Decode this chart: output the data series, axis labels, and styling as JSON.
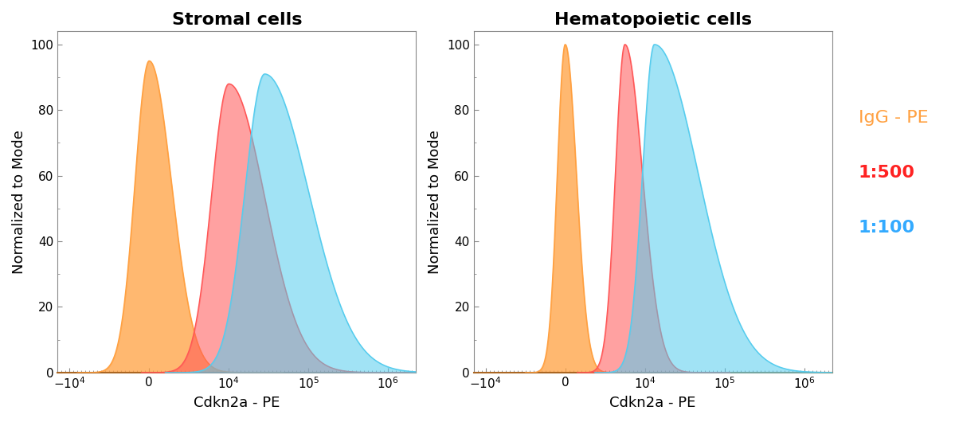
{
  "title_left": "Stromal cells",
  "title_right": "Hematopoietic cells",
  "xlabel": "Cdkn2a - PE",
  "ylabel": "Normalized to Mode",
  "ylim": [
    0,
    100
  ],
  "colors": {
    "orange": "#FFA040",
    "red": "#FF5555",
    "blue": "#55CCEE"
  },
  "legend_labels": [
    "IgG - PE",
    "1:500",
    "1:100"
  ],
  "legend_colors": [
    "#FFA040",
    "#FF2222",
    "#33AAFF"
  ],
  "stromal": {
    "orange_peak_x": 1.0,
    "orange_peak_y": 95,
    "orange_sigma_l": 0.18,
    "orange_sigma_r": 0.28,
    "red_peak_x": 2.0,
    "red_peak_y": 88,
    "red_sigma_l": 0.22,
    "red_sigma_r": 0.45,
    "blue_peak_x": 2.45,
    "blue_peak_y": 91,
    "blue_sigma_l": 0.25,
    "blue_sigma_r": 0.55
  },
  "hematopoietic": {
    "orange_peak_x": 1.0,
    "orange_peak_y": 100,
    "orange_sigma_l": 0.1,
    "orange_sigma_r": 0.14,
    "red_peak_x": 1.75,
    "red_peak_y": 100,
    "red_sigma_l": 0.12,
    "red_sigma_r": 0.22,
    "blue_peak_x": 2.12,
    "blue_peak_y": 100,
    "blue_sigma_l": 0.15,
    "blue_sigma_r": 0.55
  },
  "background_color": "#FFFFFF",
  "xlim": [
    -0.15,
    4.35
  ],
  "tick_positions": [
    0,
    1,
    2,
    3,
    4
  ],
  "yticks": [
    0,
    20,
    40,
    60,
    80,
    100
  ],
  "title_fontsize": 16,
  "label_fontsize": 13,
  "tick_fontsize": 11,
  "legend_fontsize": 16
}
